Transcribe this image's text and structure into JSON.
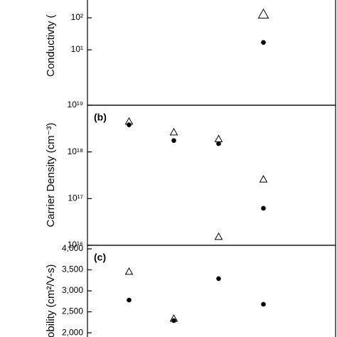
{
  "chart_data": [
    {
      "type": "scatter",
      "log": true,
      "ylabel": "Conductivty (",
      "categories": [
        null,
        null,
        null,
        null
      ],
      "series": [
        {
          "marker": "triangle",
          "color": "#000000",
          "values": [
            null,
            null,
            null,
            130
          ]
        },
        {
          "marker": "circle",
          "color": "#000000",
          "values": [
            null,
            null,
            null,
            17
          ]
        }
      ],
      "ylim": [
        0.185,
        360
      ],
      "yticks": [
        {
          "value": 10,
          "label": "10¹"
        },
        {
          "value": 100,
          "label": "10²"
        }
      ]
    },
    {
      "type": "scatter",
      "log": true,
      "panel_label": "(b)",
      "ylabel": "Carrier Density (cm⁻³)",
      "categories": [
        null,
        null,
        null,
        null
      ],
      "series": [
        {
          "marker": "triangle",
          "color": "#000000",
          "values": [
            4.5e+18,
            2.65e+18,
            1.9e+18,
            2.6e+17
          ]
        },
        {
          "marker": "circle",
          "color": "#000000",
          "values": [
            3.8e+18,
            1.75e+18,
            1.5e+18,
            6.2e+16
          ]
        }
      ],
      "ylim": [
        1e+16,
        1e+19
      ],
      "yticks": [
        {
          "value": 1e+16,
          "label": "10¹⁶"
        },
        {
          "value": 1e+17,
          "label": "10¹⁷"
        },
        {
          "value": 1e+18,
          "label": "10¹⁸"
        },
        {
          "value": 1e+19,
          "label": "10¹⁹"
        }
      ]
    },
    {
      "type": "scatter",
      "log": false,
      "panel_label": "(c)",
      "ylabel": "obility (cm²/V-s)",
      "categories": [
        null,
        null,
        null,
        null
      ],
      "series": [
        {
          "marker": "triangle",
          "color": "#000000",
          "values": [
            3460,
            2340,
            4290,
            null
          ]
        },
        {
          "marker": "circle",
          "color": "#000000",
          "values": [
            2780,
            2290,
            3290,
            2680
          ]
        }
      ],
      "ylim": [
        1900,
        4085
      ],
      "yticks": [
        {
          "value": 2000,
          "label": "2,000"
        },
        {
          "value": 2500,
          "label": "2,500"
        },
        {
          "value": 3000,
          "label": "3,000"
        },
        {
          "value": 3500,
          "label": "3,500"
        },
        {
          "value": 4000,
          "label": "4,000"
        }
      ]
    }
  ]
}
